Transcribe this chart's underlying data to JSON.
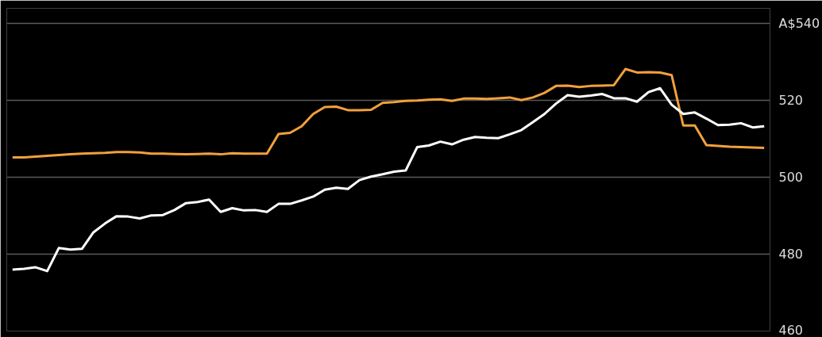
{
  "chart_data": {
    "type": "line",
    "categories": [
      null,
      null,
      null,
      null,
      null,
      null,
      null,
      null,
      null,
      null,
      null,
      null,
      null,
      null,
      null,
      null,
      null,
      null,
      null,
      null,
      null,
      null,
      null,
      null,
      null,
      null,
      null,
      null,
      null,
      null,
      null,
      null,
      null,
      null,
      null,
      null,
      null,
      null,
      null,
      null,
      null,
      null,
      null,
      null,
      null,
      null,
      null,
      null,
      null,
      null,
      null,
      null,
      null,
      null,
      null,
      null,
      null,
      null,
      null,
      null,
      null,
      null,
      null,
      null,
      null,
      null
    ],
    "series": [
      {
        "color": "#f2a03d",
        "values": [
          505.2,
          505.2,
          505.4,
          505.6,
          505.8,
          506.0,
          506.2,
          506.3,
          506.4,
          506.6,
          506.6,
          506.5,
          506.2,
          506.2,
          506.1,
          506.0,
          506.1,
          506.2,
          506.0,
          506.3,
          506.2,
          506.2,
          506.2,
          511.3,
          511.6,
          513.3,
          516.5,
          518.3,
          518.4,
          517.5,
          517.5,
          517.6,
          519.4,
          519.6,
          519.9,
          520.0,
          520.2,
          520.3,
          519.9,
          520.5,
          520.5,
          520.4,
          520.6,
          520.8,
          520.1,
          520.8,
          522.0,
          523.8,
          523.9,
          523.5,
          523.8,
          523.9,
          524.0,
          528.2,
          527.3,
          527.4,
          527.3,
          526.6,
          513.5,
          513.5,
          508.4,
          508.2,
          508.0,
          507.9,
          507.8,
          507.7
        ]
      },
      {
        "color": "#ffffff",
        "values": [
          476.0,
          476.2,
          476.6,
          475.6,
          481.6,
          481.2,
          481.4,
          485.7,
          488.0,
          489.9,
          489.8,
          489.3,
          490.1,
          490.2,
          491.5,
          493.3,
          493.6,
          494.2,
          491.0,
          492.0,
          491.4,
          491.5,
          491.0,
          493.1,
          493.1,
          494.0,
          495.0,
          496.8,
          497.3,
          497.0,
          499.3,
          500.2,
          500.8,
          501.5,
          501.8,
          507.9,
          508.3,
          509.3,
          508.6,
          509.8,
          510.5,
          510.3,
          510.2,
          511.2,
          512.3,
          514.4,
          516.5,
          519.2,
          521.4,
          521.0,
          521.3,
          521.7,
          520.6,
          520.6,
          519.7,
          522.2,
          523.2,
          518.9,
          516.5,
          516.9,
          515.3,
          513.6,
          513.7,
          514.1,
          513.0,
          513.3
        ]
      }
    ],
    "ylim": [
      460,
      544
    ],
    "yticks": [
      460,
      480,
      500,
      520,
      {
        "value": 540,
        "label": "A$540"
      }
    ],
    "grid": "y",
    "tick_labels": "y"
  }
}
